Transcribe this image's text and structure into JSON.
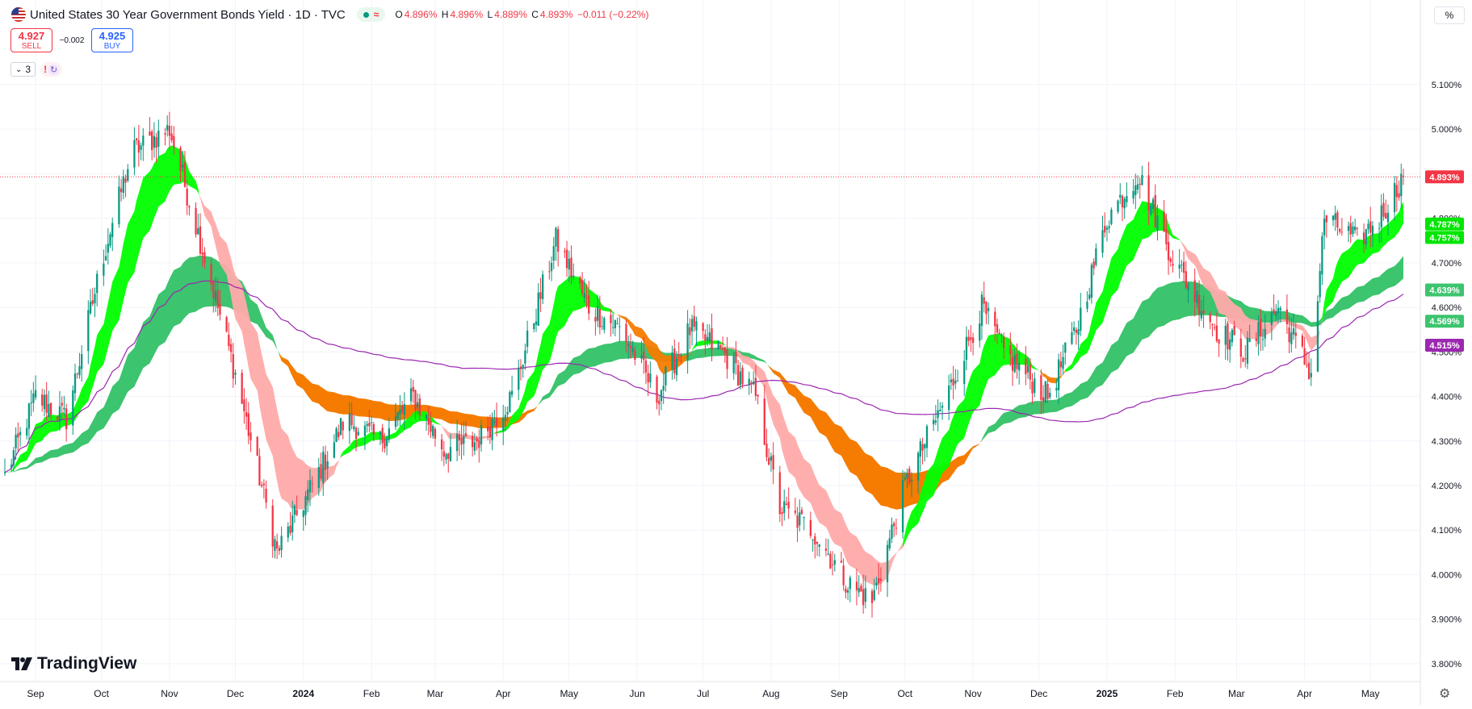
{
  "header": {
    "title": "United States 30 Year Government Bonds Yield · 1D · TVC",
    "live_icon": "live-dot-icon",
    "ohlc": {
      "o_label": "O",
      "o_value": "4.896%",
      "h_label": "H",
      "h_value": "4.896%",
      "l_label": "L",
      "l_value": "4.889%",
      "c_label": "C",
      "c_value": "4.893%",
      "change": "−0.011 (−0.22%)"
    }
  },
  "trade": {
    "sell_price": "4.927",
    "sell_label": "SELL",
    "spread": "−0.002",
    "buy_price": "4.925",
    "buy_label": "BUY"
  },
  "indicators": {
    "count": "3"
  },
  "axis_unit": "%",
  "brand": "TradingView",
  "colors": {
    "up": "#089981",
    "down": "#f23645",
    "green_ribbon": "#00ff00",
    "orange_ribbon": "#f57c00",
    "pink_ribbon": "#ffaaaa",
    "long_ribbon": "#3cc46e",
    "ma_line": "#9c27b0"
  },
  "chart_data": {
    "type": "candlestick",
    "title": "United States 30 Year Government Bonds Yield",
    "ylabel": "%",
    "ylim": [
      3.76,
      5.29
    ],
    "grid": true,
    "x_tick_labels": [
      "Sep",
      "Oct",
      "Nov",
      "Dec",
      "2024",
      "Feb",
      "Mar",
      "Apr",
      "May",
      "Jun",
      "Jul",
      "Aug",
      "Sep",
      "Oct",
      "Nov",
      "Dec",
      "2025",
      "Feb",
      "Mar",
      "Apr",
      "May"
    ],
    "y_ticks": [
      "5.100%",
      "5.000%",
      "4.900%",
      "4.800%",
      "4.700%",
      "4.600%",
      "4.500%",
      "4.400%",
      "4.300%",
      "4.200%",
      "4.100%",
      "4.000%",
      "3.900%",
      "3.800%"
    ],
    "y_tick_values": [
      5.1,
      5.0,
      4.9,
      4.8,
      4.7,
      4.6,
      4.5,
      4.4,
      4.3,
      4.2,
      4.1,
      4.0,
      3.9,
      3.8
    ],
    "x_range": [
      "2023-08-18",
      "2025-05-16"
    ],
    "series": [
      {
        "name": "30Y yield (close)",
        "dates": [
          "2023-08-18",
          "2023-09-01",
          "2023-09-15",
          "2023-10-01",
          "2023-10-15",
          "2023-11-01",
          "2023-11-15",
          "2023-12-01",
          "2023-12-20",
          "2024-01-05",
          "2024-01-20",
          "2024-02-05",
          "2024-02-20",
          "2024-03-05",
          "2024-03-20",
          "2024-04-05",
          "2024-04-25",
          "2024-05-10",
          "2024-05-25",
          "2024-06-10",
          "2024-06-25",
          "2024-07-10",
          "2024-07-25",
          "2024-08-05",
          "2024-08-20",
          "2024-09-05",
          "2024-09-16",
          "2024-10-01",
          "2024-10-20",
          "2024-11-05",
          "2024-11-15",
          "2024-12-05",
          "2024-12-18",
          "2025-01-01",
          "2025-01-15",
          "2025-02-01",
          "2025-02-20",
          "2025-03-05",
          "2025-03-20",
          "2025-04-04",
          "2025-04-10",
          "2025-04-25",
          "2025-05-05",
          "2025-05-16"
        ],
        "values": [
          4.22,
          4.4,
          4.35,
          4.7,
          4.95,
          5.0,
          4.75,
          4.45,
          4.05,
          4.2,
          4.35,
          4.3,
          4.4,
          4.28,
          4.3,
          4.4,
          4.75,
          4.6,
          4.55,
          4.4,
          4.55,
          4.5,
          4.4,
          4.15,
          4.1,
          3.98,
          3.94,
          4.2,
          4.4,
          4.6,
          4.5,
          4.4,
          4.55,
          4.8,
          4.9,
          4.7,
          4.55,
          4.5,
          4.6,
          4.45,
          4.8,
          4.75,
          4.8,
          4.893
        ]
      },
      {
        "name": "MA 1",
        "last_value": "4.787%",
        "label_color": "#00e600"
      },
      {
        "name": "MA 2",
        "last_value": "4.757%",
        "label_color": "#00e600"
      },
      {
        "name": "MA 3",
        "last_value": "4.639%",
        "label_color": "#3cc46e"
      },
      {
        "name": "MA 4",
        "last_value": "4.569%",
        "label_color": "#3cc46e"
      },
      {
        "name": "MA 5",
        "last_value": "4.515%",
        "label_color": "#9c27b0"
      }
    ],
    "last_price": {
      "value": 4.893,
      "label": "4.893%"
    }
  }
}
